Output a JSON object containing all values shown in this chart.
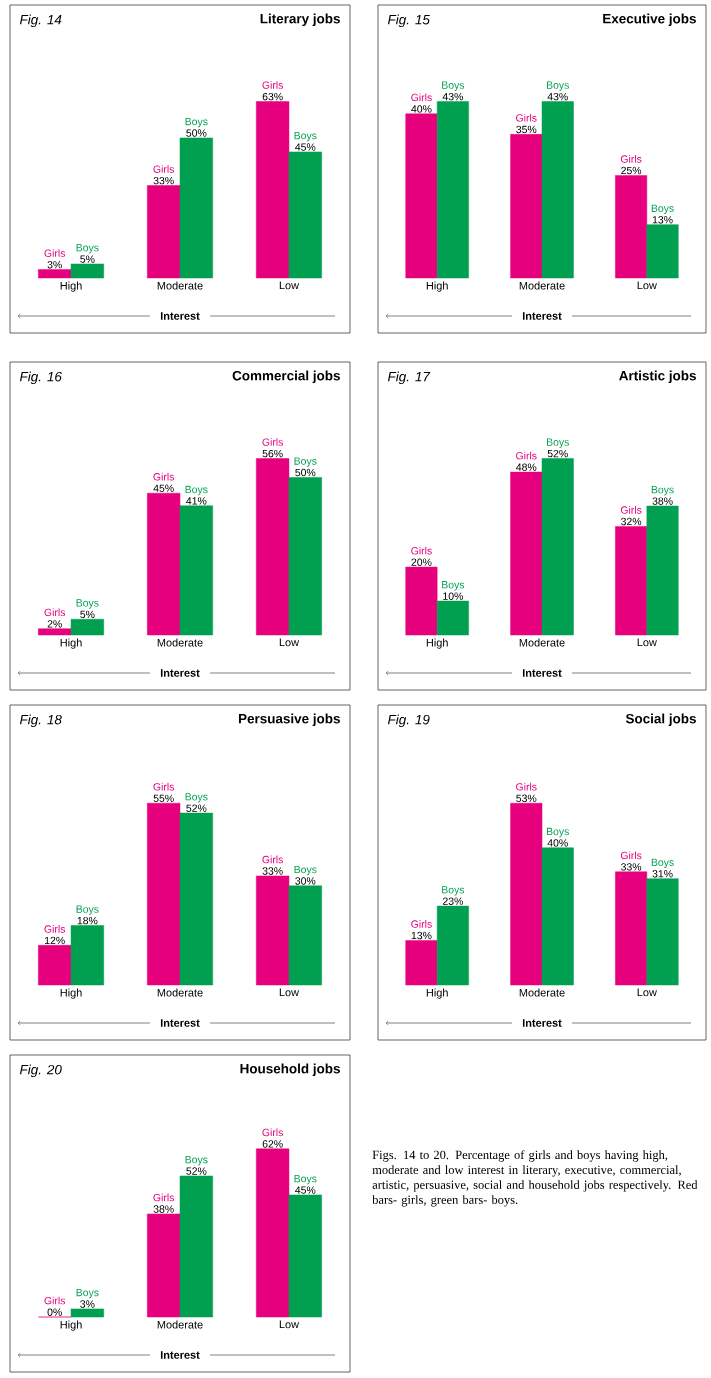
{
  "chart_data": [
    {
      "type": "bar",
      "title": "Literary jobs",
      "annotations": [
        "Fig. 14"
      ],
      "xlabel": "Interest",
      "categories": [
        "High",
        "Moderate",
        "Low"
      ],
      "series": [
        {
          "name": "Girls",
          "color": "#e6007e",
          "values": [
            3,
            33,
            63
          ],
          "value_labels": [
            "3%",
            "33%",
            "63%"
          ]
        },
        {
          "name": "Boys",
          "color": "#00a050",
          "values": [
            5,
            50,
            45
          ],
          "value_labels": [
            "5%",
            "50%",
            "45%"
          ]
        }
      ]
    },
    {
      "type": "bar",
      "title": "Executive jobs",
      "annotations": [
        "Fig. 15"
      ],
      "xlabel": "Interest",
      "categories": [
        "High",
        "Moderate",
        "Low"
      ],
      "series": [
        {
          "name": "Girls",
          "color": "#e6007e",
          "values": [
            40,
            35,
            25
          ],
          "value_labels": [
            "40%",
            "35%",
            "25%"
          ]
        },
        {
          "name": "Boys",
          "color": "#00a050",
          "values": [
            43,
            43,
            13
          ],
          "value_labels": [
            "43%",
            "43%",
            "13%"
          ]
        }
      ]
    },
    {
      "type": "bar",
      "title": "Commercial jobs",
      "annotations": [
        "Fig. 16"
      ],
      "xlabel": "Interest",
      "categories": [
        "High",
        "Moderate",
        "Low"
      ],
      "series": [
        {
          "name": "Girls",
          "color": "#e6007e",
          "values": [
            2,
            45,
            56
          ],
          "value_labels": [
            "2%",
            "45%",
            "56%"
          ]
        },
        {
          "name": "Boys",
          "color": "#00a050",
          "values": [
            5,
            41,
            50
          ],
          "value_labels": [
            "5%",
            "41%",
            "50%"
          ]
        }
      ]
    },
    {
      "type": "bar",
      "title": "Artistic jobs",
      "annotations": [
        "Fig. 17"
      ],
      "xlabel": "Interest",
      "categories": [
        "High",
        "Moderate",
        "Low"
      ],
      "series": [
        {
          "name": "Girls",
          "color": "#e6007e",
          "values": [
            20,
            48,
            32
          ],
          "value_labels": [
            "20%",
            "48%",
            "32%"
          ]
        },
        {
          "name": "Boys",
          "color": "#00a050",
          "values": [
            10,
            52,
            38
          ],
          "value_labels": [
            "10%",
            "52%",
            "38%"
          ]
        }
      ]
    },
    {
      "type": "bar",
      "title": "Persuasive jobs",
      "annotations": [
        "Fig. 18"
      ],
      "xlabel": "Interest",
      "categories": [
        "High",
        "Moderate",
        "Low"
      ],
      "series": [
        {
          "name": "Girls",
          "color": "#e6007e",
          "values": [
            12,
            55,
            33
          ],
          "value_labels": [
            "12%",
            "55%",
            "33%"
          ]
        },
        {
          "name": "Boys",
          "color": "#00a050",
          "values": [
            18,
            52,
            30
          ],
          "value_labels": [
            "18%",
            "52%",
            "30%"
          ]
        }
      ]
    },
    {
      "type": "bar",
      "title": "Social jobs",
      "annotations": [
        "Fig. 19"
      ],
      "xlabel": "Interest",
      "categories": [
        "High",
        "Moderate",
        "Low"
      ],
      "series": [
        {
          "name": "Girls",
          "color": "#e6007e",
          "values": [
            13,
            53,
            33
          ],
          "value_labels": [
            "13%",
            "53%",
            "33%"
          ]
        },
        {
          "name": "Boys",
          "color": "#00a050",
          "values": [
            23,
            40,
            31
          ],
          "value_labels": [
            "23%",
            "40%",
            "31%"
          ]
        }
      ]
    },
    {
      "type": "bar",
      "title": "Household jobs",
      "annotations": [
        "Fig. 20"
      ],
      "xlabel": "Interest",
      "categories": [
        "High",
        "Moderate",
        "Low"
      ],
      "series": [
        {
          "name": "Girls",
          "color": "#e6007e",
          "values": [
            0,
            38,
            62
          ],
          "value_labels": [
            "0%",
            "38%",
            "62%"
          ]
        },
        {
          "name": "Boys",
          "color": "#00a050",
          "values": [
            3,
            52,
            45
          ],
          "value_labels": [
            "3%",
            "52%",
            "45%"
          ]
        }
      ]
    },
    {
      "type": "other",
      "annotations": [
        "Figs. 14 to 20. Percentage of girls and boys having high, moderate and low interest in literary, executive, commercial, artistic, persuasive, social and household jobs respectively. Red bars- girls, green bars- boys."
      ]
    }
  ]
}
